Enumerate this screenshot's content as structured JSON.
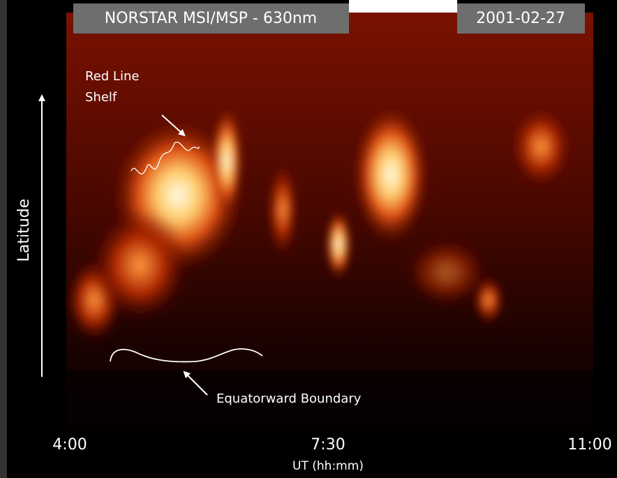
{
  "header": {
    "title": "NORSTAR MSI/MSP - 630nm",
    "date": "2001-02-27"
  },
  "annotations": {
    "shelf": [
      "Red Line",
      "Shelf"
    ],
    "boundary": "Equatorward Boundary"
  },
  "axes": {
    "y_label": "Latitude",
    "x_label": "UT (hh:mm)",
    "x_ticks": [
      "4:00",
      "7:30",
      "11:00"
    ]
  }
}
